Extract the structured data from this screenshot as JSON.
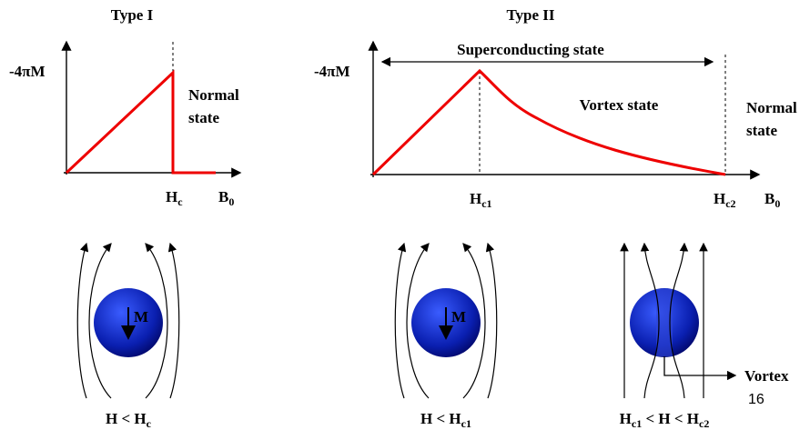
{
  "type1": {
    "title": "Type I",
    "y_axis": "-4πM",
    "hc": {
      "base": "H",
      "sub": "c"
    },
    "b0": {
      "base": "B",
      "sub": "0"
    },
    "state": [
      "Normal",
      "state"
    ]
  },
  "type2": {
    "title": "Type II",
    "y_axis": "-4πM",
    "hc1": {
      "base": "H",
      "sub": "c1"
    },
    "hc2": {
      "base": "H",
      "sub": "c2"
    },
    "b0": {
      "base": "B",
      "sub": "0"
    },
    "superconducting": "Superconducting state",
    "vortex_state": "Vortex state",
    "state": [
      "Normal",
      "state"
    ]
  },
  "spheres": [
    {
      "moment": "M",
      "caption": [
        {
          "base": "H < H",
          "sub": "c"
        }
      ]
    },
    {
      "moment": "M",
      "caption": [
        {
          "base": "H < H",
          "sub": "c1"
        }
      ]
    },
    {
      "caption": [
        {
          "base": "H",
          "sub": "c1"
        },
        {
          "base": " < H < H",
          "sub": "c2"
        }
      ],
      "pointer": "Vortex"
    }
  ],
  "page_number": "16"
}
